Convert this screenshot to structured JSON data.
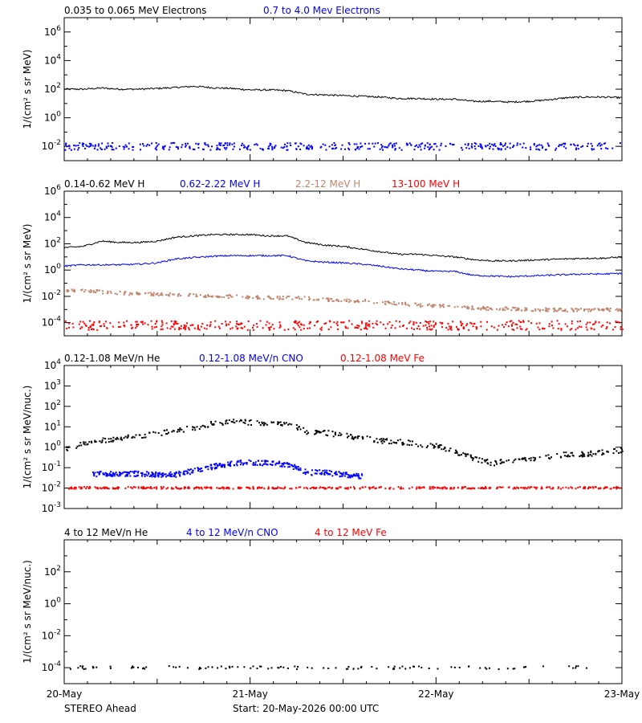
{
  "colors": {
    "black": "#000000",
    "blue": "#0000ff",
    "brown": "#c0846c",
    "red": "#ff0000"
  },
  "footer": {
    "left": "STEREO Ahead",
    "center": "Start: 20-May-2026 00:00 UTC"
  },
  "chart_data": [
    {
      "type": "scatter",
      "panel": "electrons",
      "y_scale": "log",
      "ylabel": "1/(cm² s sr MeV)",
      "ylim_log10": [
        -3,
        7
      ],
      "y_tick_exponents": [
        -2,
        0,
        2,
        4,
        6
      ],
      "x_tick_labels": [
        "20-May",
        "21-May",
        "22-May",
        "23-May"
      ],
      "x_range_days": [
        0,
        3
      ],
      "series": [
        {
          "name": "0.035 to 0.065 MeV Electrons",
          "color": "black",
          "style": "line",
          "x": [
            0.0,
            0.1,
            0.2,
            0.3,
            0.4,
            0.5,
            0.6,
            0.7,
            0.8,
            0.9,
            1.0,
            1.1,
            1.2,
            1.3,
            1.4,
            1.5,
            1.6,
            1.7,
            1.8,
            1.9,
            2.0,
            2.1,
            2.2,
            2.3,
            2.4,
            2.5,
            2.6,
            2.7,
            2.8,
            2.9,
            3.0
          ],
          "log10_y": [
            2.0,
            2.0,
            2.08,
            2.0,
            2.0,
            2.05,
            2.12,
            2.2,
            2.1,
            2.05,
            1.95,
            1.95,
            1.9,
            1.65,
            1.6,
            1.55,
            1.5,
            1.45,
            1.35,
            1.35,
            1.3,
            1.3,
            1.15,
            1.15,
            1.1,
            1.15,
            1.25,
            1.4,
            1.45,
            1.45,
            1.4
          ]
        },
        {
          "name": "0.7 to 4.0 Mev Electrons",
          "color": "blue",
          "style": "dots",
          "x_range": [
            0,
            3
          ],
          "log10_y_center": -1.95,
          "log10_y_spread": 0.25
        }
      ]
    },
    {
      "type": "scatter",
      "panel": "protons",
      "y_scale": "log",
      "ylabel": "1/(cm² s sr MeV)",
      "ylim_log10": [
        -5,
        6
      ],
      "y_tick_exponents": [
        -4,
        -2,
        0,
        2,
        4,
        6
      ],
      "x_tick_labels": [
        "20-May",
        "21-May",
        "22-May",
        "23-May"
      ],
      "x_range_days": [
        0,
        3
      ],
      "series": [
        {
          "name": "0.14-0.62 MeV H",
          "color": "black",
          "style": "line",
          "x": [
            0.0,
            0.1,
            0.2,
            0.3,
            0.4,
            0.5,
            0.6,
            0.7,
            0.8,
            0.9,
            1.0,
            1.1,
            1.2,
            1.3,
            1.4,
            1.5,
            1.6,
            1.7,
            1.8,
            1.9,
            2.0,
            2.1,
            2.2,
            2.3,
            2.4,
            2.5,
            2.6,
            2.7,
            2.8,
            2.9,
            3.0
          ],
          "log10_y": [
            1.7,
            1.8,
            2.2,
            2.1,
            2.1,
            2.2,
            2.5,
            2.6,
            2.7,
            2.7,
            2.7,
            2.6,
            2.6,
            2.1,
            1.9,
            1.8,
            1.6,
            1.4,
            1.2,
            1.2,
            1.1,
            1.0,
            0.8,
            0.7,
            0.7,
            0.75,
            0.8,
            0.85,
            0.9,
            0.9,
            1.0
          ]
        },
        {
          "name": "0.62-2.22 MeV H",
          "color": "blue",
          "style": "line",
          "x": [
            0.0,
            0.1,
            0.2,
            0.3,
            0.4,
            0.5,
            0.6,
            0.7,
            0.8,
            0.9,
            1.0,
            1.1,
            1.2,
            1.3,
            1.4,
            1.5,
            1.6,
            1.7,
            1.8,
            1.9,
            2.0,
            2.1,
            2.2,
            2.3,
            2.4,
            2.5,
            2.6,
            2.7,
            2.8,
            2.9,
            3.0
          ],
          "log10_y": [
            0.3,
            0.4,
            0.4,
            0.4,
            0.45,
            0.55,
            0.85,
            0.95,
            1.05,
            1.1,
            1.1,
            1.1,
            1.1,
            0.7,
            0.6,
            0.55,
            0.45,
            0.3,
            0.1,
            0.0,
            -0.1,
            -0.1,
            -0.4,
            -0.45,
            -0.5,
            -0.45,
            -0.4,
            -0.35,
            -0.3,
            -0.3,
            -0.25
          ]
        },
        {
          "name": "2.2-12 MeV H",
          "color": "brown",
          "style": "dots",
          "x": [
            0.0,
            0.1,
            0.2,
            0.3,
            0.4,
            0.5,
            0.6,
            0.7,
            0.8,
            0.9,
            1.0,
            1.1,
            1.2,
            1.3,
            1.4,
            1.5,
            1.6,
            1.7,
            1.8,
            1.9,
            2.0,
            2.1,
            2.2,
            2.3,
            2.4,
            2.5,
            2.6,
            2.7,
            2.8,
            2.9,
            3.0
          ],
          "log10_y": [
            -1.5,
            -1.5,
            -1.6,
            -1.7,
            -1.75,
            -1.8,
            -1.8,
            -1.85,
            -1.9,
            -1.95,
            -2.0,
            -2.05,
            -2.05,
            -2.1,
            -2.2,
            -2.25,
            -2.3,
            -2.4,
            -2.5,
            -2.6,
            -2.65,
            -2.7,
            -2.8,
            -2.9,
            -2.9,
            -2.95,
            -2.95,
            -3.0,
            -2.95,
            -2.95,
            -3.0
          ]
        },
        {
          "name": "13-100 MeV H",
          "color": "red",
          "style": "dots",
          "x_range": [
            0,
            3
          ],
          "log10_y_center": -4.15,
          "log10_y_spread": 0.35
        }
      ]
    },
    {
      "type": "scatter",
      "panel": "low-energy heavy ions",
      "y_scale": "log",
      "ylabel": "1/(cm² s sr MeV/nuc.)",
      "ylim_log10": [
        -3,
        4
      ],
      "y_tick_exponents": [
        -3,
        -2,
        -1,
        0,
        1,
        2,
        3,
        4
      ],
      "x_tick_labels": [
        "20-May",
        "21-May",
        "22-May",
        "23-May"
      ],
      "x_range_days": [
        0,
        3
      ],
      "series": [
        {
          "name": "0.12-1.08 MeV/n He",
          "color": "black",
          "style": "dots",
          "x": [
            0.0,
            0.1,
            0.2,
            0.3,
            0.4,
            0.5,
            0.6,
            0.7,
            0.8,
            0.9,
            1.0,
            1.1,
            1.2,
            1.3,
            1.4,
            1.5,
            1.6,
            1.7,
            1.8,
            1.9,
            2.0,
            2.1,
            2.2,
            2.3,
            2.4,
            2.5,
            2.6,
            2.7,
            2.8,
            2.9,
            3.0
          ],
          "log10_y": [
            -0.1,
            0.2,
            0.35,
            0.45,
            0.6,
            0.7,
            0.85,
            1.0,
            1.2,
            1.3,
            1.25,
            1.2,
            1.2,
            0.8,
            0.75,
            0.6,
            0.5,
            0.35,
            0.3,
            0.2,
            0.1,
            -0.2,
            -0.5,
            -0.75,
            -0.6,
            -0.5,
            -0.45,
            -0.3,
            -0.3,
            -0.2,
            -0.1
          ]
        },
        {
          "name": "0.12-1.08 MeV/n CNO",
          "color": "blue",
          "style": "dots",
          "x": [
            0.15,
            0.2,
            0.3,
            0.4,
            0.5,
            0.6,
            0.7,
            0.8,
            0.9,
            1.0,
            1.1,
            1.2,
            1.3,
            1.4,
            1.5,
            1.6
          ],
          "log10_y": [
            -1.3,
            -1.25,
            -1.3,
            -1.25,
            -1.3,
            -1.3,
            -1.1,
            -0.9,
            -0.75,
            -0.7,
            -0.75,
            -0.8,
            -1.2,
            -1.2,
            -1.3,
            -1.4
          ]
        },
        {
          "name": "0.12-1.08 MeV Fe",
          "color": "red",
          "style": "dots",
          "x_range": [
            0,
            3
          ],
          "log10_y_center": -1.95,
          "log10_y_spread": 0.05
        }
      ]
    },
    {
      "type": "scatter",
      "panel": "high-energy heavy ions",
      "y_scale": "log",
      "ylabel": "1/(cm² s sr MeV/nuc.)",
      "ylim_log10": [
        -5,
        4
      ],
      "y_tick_exponents": [
        -4,
        -2,
        0,
        2
      ],
      "x_tick_labels": [
        "20-May",
        "21-May",
        "22-May",
        "23-May"
      ],
      "x_range_days": [
        0,
        3
      ],
      "series": [
        {
          "name": "4 to 12 MeV/n He",
          "color": "black",
          "style": "dots",
          "x_range": [
            0,
            2.85
          ],
          "log10_y_center": -3.95,
          "log10_y_spread": 0.1
        },
        {
          "name": "4 to 12 MeV/n CNO",
          "color": "blue",
          "style": "none",
          "x": [],
          "log10_y": []
        },
        {
          "name": "4 to 12 MeV Fe",
          "color": "red",
          "style": "none",
          "x": [],
          "log10_y": []
        }
      ]
    }
  ]
}
